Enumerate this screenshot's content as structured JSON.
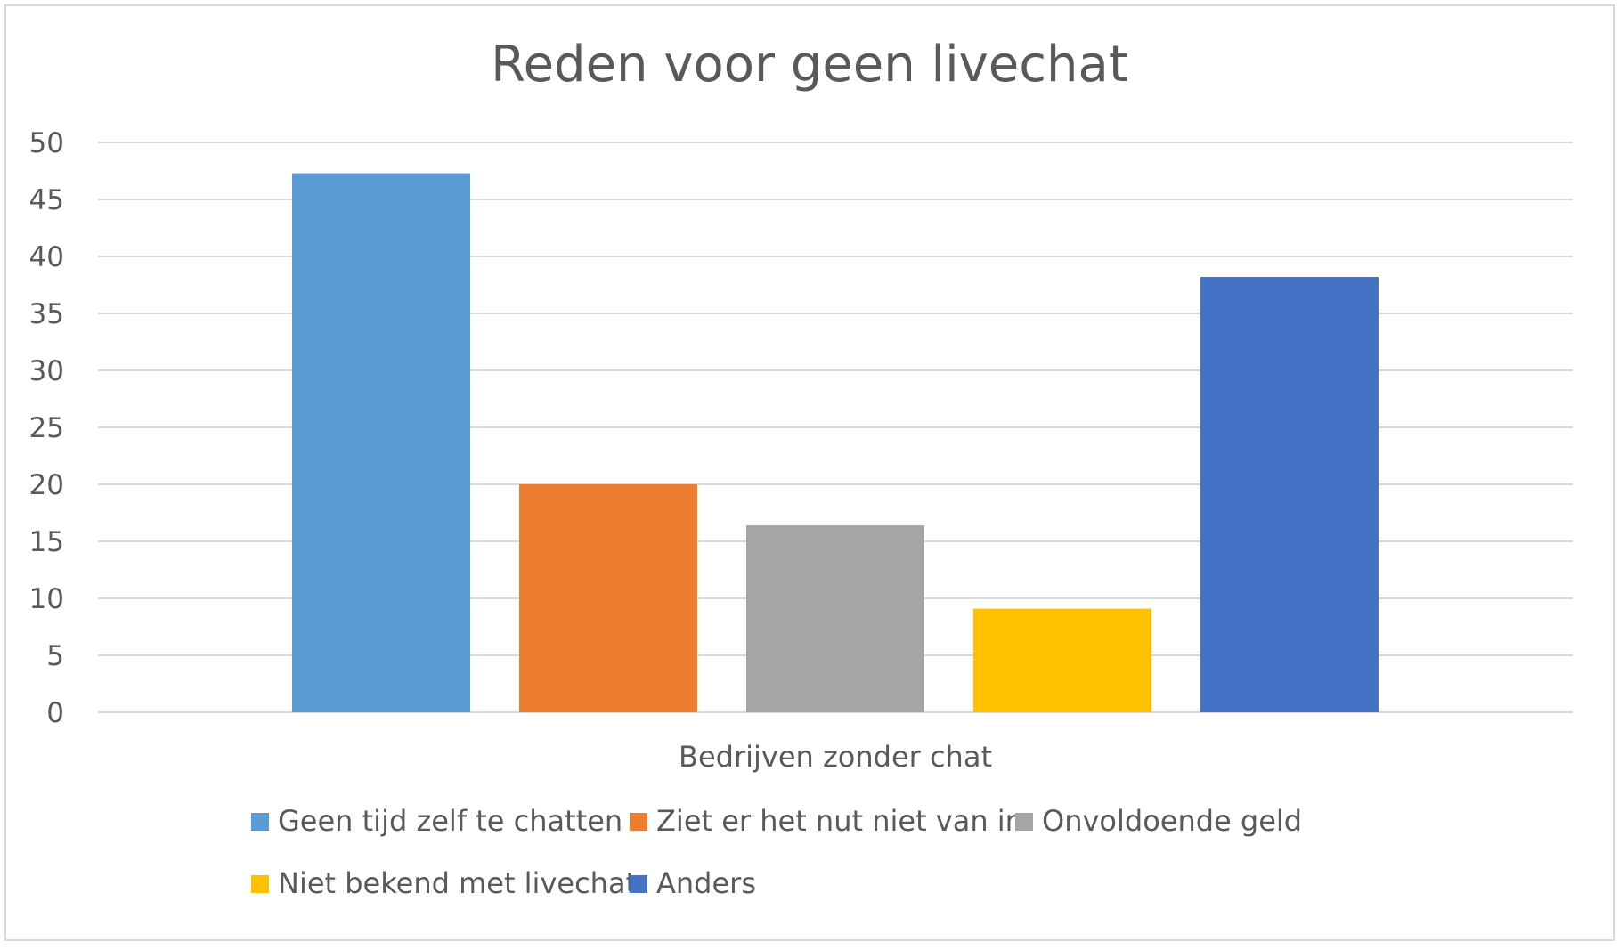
{
  "chart_data": {
    "type": "bar",
    "title": "Reden voor geen livechat",
    "categories": [
      "Bedrijven zonder chat"
    ],
    "series": [
      {
        "name": "Geen tijd zelf te chatten",
        "values": [
          47.3
        ],
        "color": "#5B9BD5"
      },
      {
        "name": "Ziet er het nut niet van in",
        "values": [
          20
        ],
        "color": "#ED7D31"
      },
      {
        "name": "Onvoldoende geld",
        "values": [
          16.4
        ],
        "color": "#A5A5A5"
      },
      {
        "name": "Niet bekend met livechat",
        "values": [
          9.1
        ],
        "color": "#FFC000"
      },
      {
        "name": "Anders",
        "values": [
          38.2
        ],
        "color": "#4472C4"
      }
    ],
    "yticks": [
      "0",
      "5",
      "10",
      "15",
      "20",
      "25",
      "30",
      "35",
      "40",
      "45",
      "50"
    ],
    "ylim": [
      0,
      50
    ],
    "grid": true,
    "legend": "bottom",
    "xlabel": "",
    "ylabel": ""
  }
}
